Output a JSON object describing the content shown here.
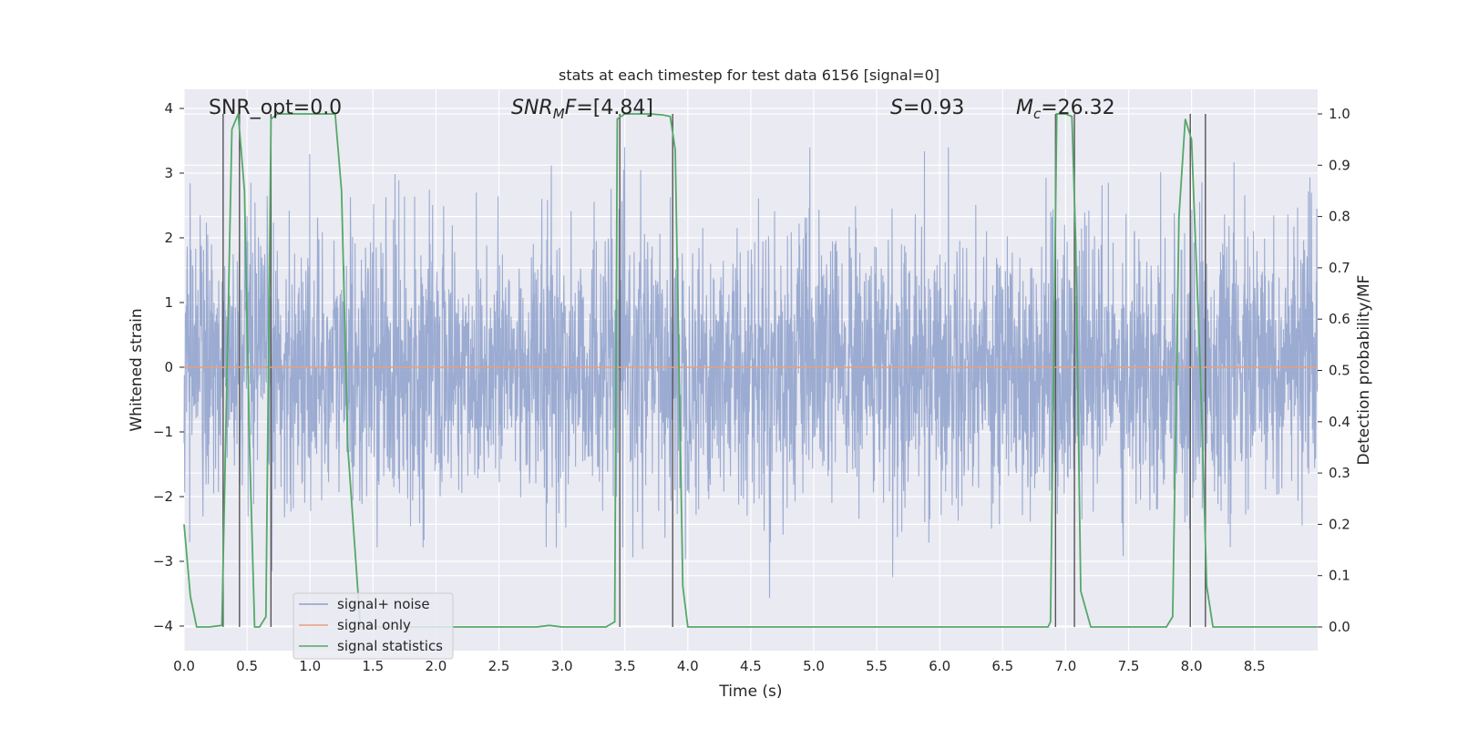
{
  "chart_data": {
    "type": "line",
    "title": "stats at each timestep for test data 6156 [signal=0]",
    "xlabel": "Time (s)",
    "ylabel": "Whitened strain",
    "y2label": "Detection probability/MF",
    "xlim": [
      0,
      9.0
    ],
    "ylim": [
      -4.4,
      4.3
    ],
    "y2lim": [
      -0.047,
      1.047
    ],
    "grid": true,
    "legend_position": "lower-left",
    "x_ticks": [
      "0.0",
      "0.5",
      "1.0",
      "1.5",
      "2.0",
      "2.5",
      "3.0",
      "3.5",
      "4.0",
      "4.5",
      "5.0",
      "5.5",
      "6.0",
      "6.5",
      "7.0",
      "7.5",
      "8.0",
      "8.5"
    ],
    "y_ticks": [
      "−4",
      "−3",
      "−2",
      "−1",
      "0",
      "1",
      "2",
      "3",
      "4"
    ],
    "y2_ticks": [
      "0.0",
      "0.1",
      "0.2",
      "0.3",
      "0.4",
      "0.5",
      "0.6",
      "0.7",
      "0.8",
      "0.9",
      "1.0"
    ],
    "annotations": {
      "snr_opt": "SNR_opt=0.0",
      "snr_mf_sym": "SNR",
      "snr_mf_sub": "M",
      "snr_mf_rest": "F=[4.84]",
      "s_sym": "S",
      "s_rest": "=0.93",
      "mc_sym": "M",
      "mc_sub": "c",
      "mc_rest": "=26.32"
    },
    "series": [
      {
        "name": "signal+ noise",
        "color": "#8da0cb",
        "kind": "noise",
        "description_range": [
          -3.9,
          3.4
        ]
      },
      {
        "name": "signal only",
        "color": "#e6a07f",
        "values_constant": 0.0
      },
      {
        "name": "signal statistics",
        "color": "#55a868",
        "axis": "right",
        "x": [
          0.0,
          0.05,
          0.1,
          0.2,
          0.3,
          0.38,
          0.43,
          0.48,
          0.52,
          0.56,
          0.6,
          0.65,
          0.69,
          0.74,
          0.78,
          0.9,
          1.0,
          1.1,
          1.2,
          1.25,
          1.3,
          1.4,
          1.6,
          2.0,
          2.5,
          2.8,
          2.9,
          3.0,
          3.2,
          3.35,
          3.42,
          3.44,
          3.5,
          3.7,
          3.8,
          3.86,
          3.9,
          3.96,
          4.0,
          4.3,
          5.0,
          6.0,
          6.5,
          6.86,
          6.88,
          6.93,
          7.0,
          7.05,
          7.08,
          7.12,
          7.2,
          7.4,
          7.6,
          7.8,
          7.85,
          7.9,
          7.95,
          8.0,
          8.07,
          8.12,
          8.17,
          8.2,
          8.5,
          9.0
        ],
        "values": [
          0.2,
          0.06,
          0.0,
          0.0,
          0.003,
          0.97,
          1.0,
          0.85,
          0.35,
          0.0,
          0.0,
          0.02,
          0.99,
          1.0,
          1.0,
          1.0,
          1.0,
          1.0,
          1.0,
          0.85,
          0.35,
          0.0,
          0.0,
          0.0,
          0.0,
          0.0,
          0.003,
          0.0,
          0.0,
          0.0,
          0.01,
          0.99,
          1.0,
          1.0,
          0.998,
          0.995,
          0.93,
          0.08,
          0.0,
          0.0,
          0.0,
          0.0,
          0.0,
          0.0,
          0.01,
          1.0,
          1.0,
          0.995,
          0.75,
          0.07,
          0.0,
          0.0,
          0.0,
          0.0,
          0.02,
          0.8,
          0.99,
          0.95,
          0.5,
          0.08,
          0.0,
          0.0,
          0.0,
          0.0
        ]
      }
    ],
    "vertical_markers": [
      0.31,
      0.44,
      0.69,
      3.46,
      3.88,
      6.92,
      7.07,
      7.99,
      8.11
    ]
  }
}
